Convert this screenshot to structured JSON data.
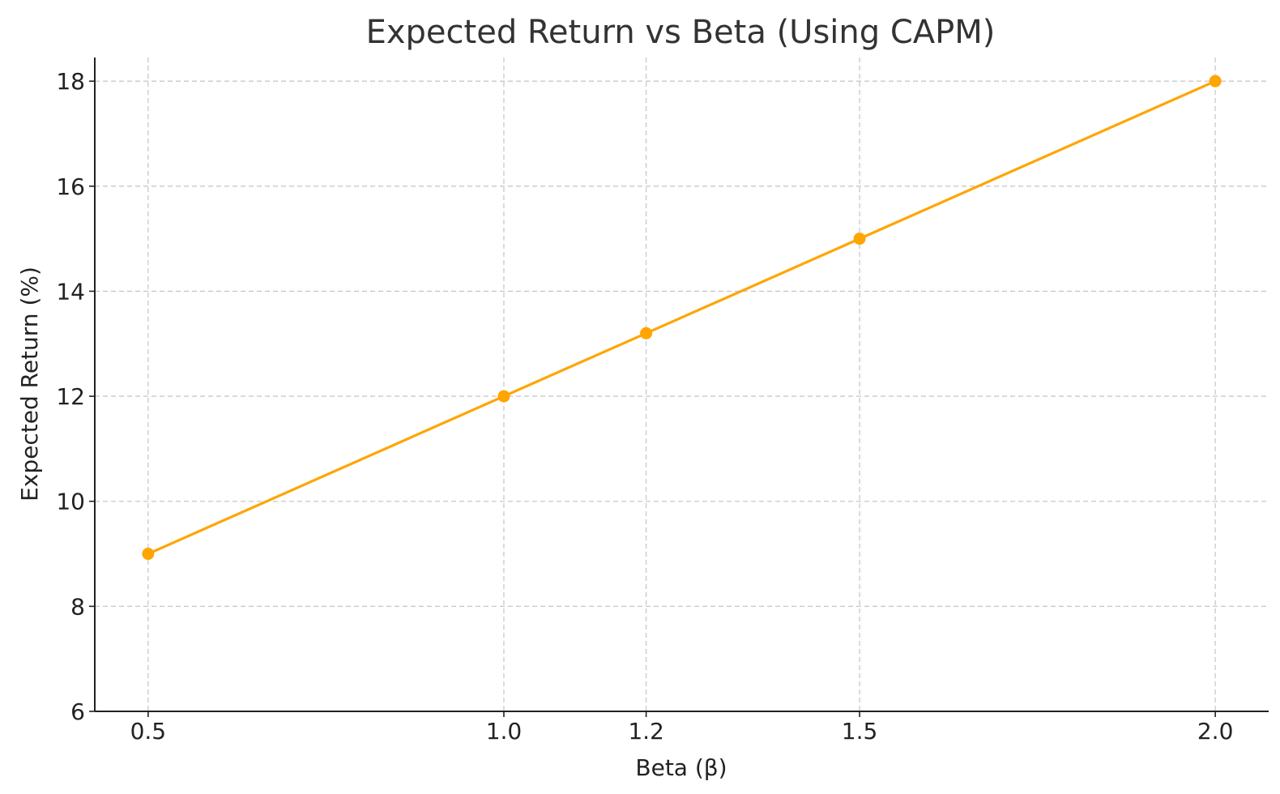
{
  "chart_data": {
    "type": "line",
    "title": "Expected Return vs Beta (Using CAPM)",
    "xlabel": "Beta (β)",
    "ylabel": "Expected Return (%)",
    "x": [
      0.5,
      1.0,
      1.2,
      1.5,
      2.0
    ],
    "x_tick_labels": [
      "0.5",
      "1.0",
      "1.2",
      "1.5",
      "2.0"
    ],
    "y_ticks": [
      6,
      8,
      10,
      12,
      14,
      16,
      18
    ],
    "y_tick_labels": [
      "6",
      "8",
      "10",
      "12",
      "14",
      "16",
      "18"
    ],
    "series": [
      {
        "values": [
          9.0,
          12.0,
          13.2,
          15.0,
          18.0
        ],
        "color": "#FFA500",
        "marker": "circle"
      }
    ],
    "xlim": [
      0.425,
      2.075
    ],
    "ylim": [
      6,
      18.45
    ],
    "grid": true,
    "grid_style": "dashed"
  }
}
